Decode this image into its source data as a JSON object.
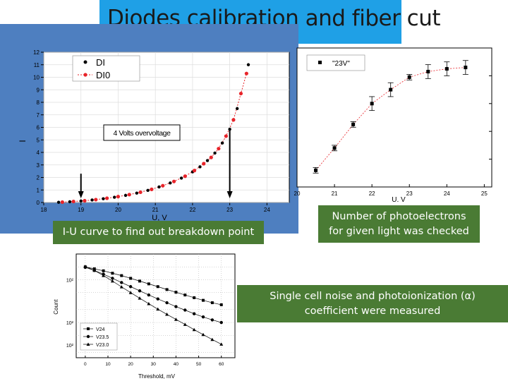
{
  "slide": {
    "title": "Diodes calibration and fiber cut",
    "captions": {
      "iu": "I-U curve to find out breakdown point",
      "photoelectrons_line1": "Number of photoelectrons",
      "photoelectrons_line2": "for given light was checked",
      "noise_line1": "Single cell noise and photoionization (α)",
      "noise_line2": "coefficient were measured"
    },
    "colors": {
      "title_bg": "#1fa0e6",
      "panel_bg": "#4e7fc0",
      "caption_bg": "#4a7b34"
    }
  },
  "chart_data": [
    {
      "type": "scatter",
      "xlabel": "U, V",
      "ylabel": "I",
      "xlim": [
        18,
        24.6
      ],
      "ylim": [
        0,
        12
      ],
      "x_ticks": [
        18,
        19,
        20,
        21,
        22,
        23,
        24
      ],
      "y_ticks": [
        0,
        1,
        2,
        3,
        4,
        5,
        6,
        7,
        8,
        9,
        10,
        11,
        12
      ],
      "grid": true,
      "legend": "top-left",
      "annotation": "4 Volts overvoltage",
      "arrows_at_x": [
        19.0,
        23.0
      ],
      "series": [
        {
          "name": "DI",
          "color": "#000000",
          "x": [
            18.4,
            18.7,
            19.0,
            19.3,
            19.6,
            19.9,
            20.2,
            20.5,
            20.8,
            21.1,
            21.4,
            21.7,
            22.0,
            22.2,
            22.4,
            22.6,
            22.8,
            23.0,
            23.2,
            23.5
          ],
          "y": [
            0.02,
            0.06,
            0.12,
            0.2,
            0.3,
            0.42,
            0.57,
            0.75,
            0.97,
            1.24,
            1.56,
            1.95,
            2.45,
            2.85,
            3.35,
            3.95,
            4.75,
            5.85,
            7.5,
            11.0
          ]
        },
        {
          "name": "DI0",
          "color": "#e8242a",
          "x": [
            18.5,
            18.8,
            19.1,
            19.4,
            19.7,
            20.0,
            20.3,
            20.6,
            20.9,
            21.2,
            21.5,
            21.8,
            22.05,
            22.3,
            22.5,
            22.7,
            22.9,
            23.1,
            23.3,
            23.45
          ],
          "y": [
            0.03,
            0.08,
            0.14,
            0.23,
            0.34,
            0.47,
            0.63,
            0.82,
            1.05,
            1.34,
            1.68,
            2.1,
            2.55,
            3.1,
            3.6,
            4.3,
            5.3,
            6.6,
            8.7,
            10.3
          ]
        }
      ]
    },
    {
      "type": "scatter",
      "xlabel": "U, V",
      "xlim": [
        20,
        25.2
      ],
      "ylim": [
        0,
        1
      ],
      "x_ticks": [
        20,
        21,
        22,
        23,
        24,
        25
      ],
      "legend": "top-left",
      "series": [
        {
          "name": "\"23V\"",
          "color": "#000000",
          "x": [
            20.5,
            21.0,
            21.5,
            22.0,
            22.5,
            23.0,
            23.5,
            24.0,
            24.5
          ],
          "y": [
            0.12,
            0.28,
            0.45,
            0.6,
            0.7,
            0.79,
            0.83,
            0.85,
            0.86
          ],
          "err": [
            0.02,
            0.02,
            0.02,
            0.05,
            0.05,
            0.02,
            0.05,
            0.05,
            0.05
          ]
        }
      ]
    },
    {
      "type": "line",
      "xlabel": "Threshold, mV",
      "ylabel": "Count",
      "xlim": [
        -4,
        66
      ],
      "ylog": true,
      "ylim": [
        15,
        4000
      ],
      "x_ticks": [
        0,
        10,
        20,
        30,
        40,
        50,
        60
      ],
      "y_tick_labels": [
        "10²",
        "10²",
        "10²"
      ],
      "legend": "bottom-left",
      "series": [
        {
          "name": "V24",
          "marker": "square",
          "x": [
            0,
            4,
            8,
            12,
            16,
            20,
            24,
            28,
            32,
            36,
            40,
            44,
            48,
            52,
            56,
            60
          ],
          "y": [
            2000,
            1800,
            1620,
            1420,
            1250,
            1080,
            930,
            800,
            690,
            590,
            510,
            440,
            380,
            330,
            290,
            260
          ]
        },
        {
          "name": "V23.5",
          "marker": "circle",
          "x": [
            0,
            4,
            8,
            12,
            16,
            20,
            24,
            28,
            32,
            36,
            40,
            44,
            48,
            52,
            56,
            60
          ],
          "y": [
            1950,
            1650,
            1350,
            1080,
            860,
            690,
            550,
            440,
            355,
            290,
            235,
            195,
            160,
            135,
            115,
            100
          ]
        },
        {
          "name": "V23.0",
          "marker": "triangle",
          "x": [
            0,
            4,
            8,
            12,
            16,
            20,
            24,
            28,
            32,
            36,
            40,
            44,
            48,
            52,
            56,
            60
          ],
          "y": [
            2050,
            1650,
            1250,
            930,
            680,
            500,
            370,
            275,
            205,
            155,
            118,
            90,
            68,
            52,
            40,
            31
          ]
        }
      ]
    }
  ]
}
